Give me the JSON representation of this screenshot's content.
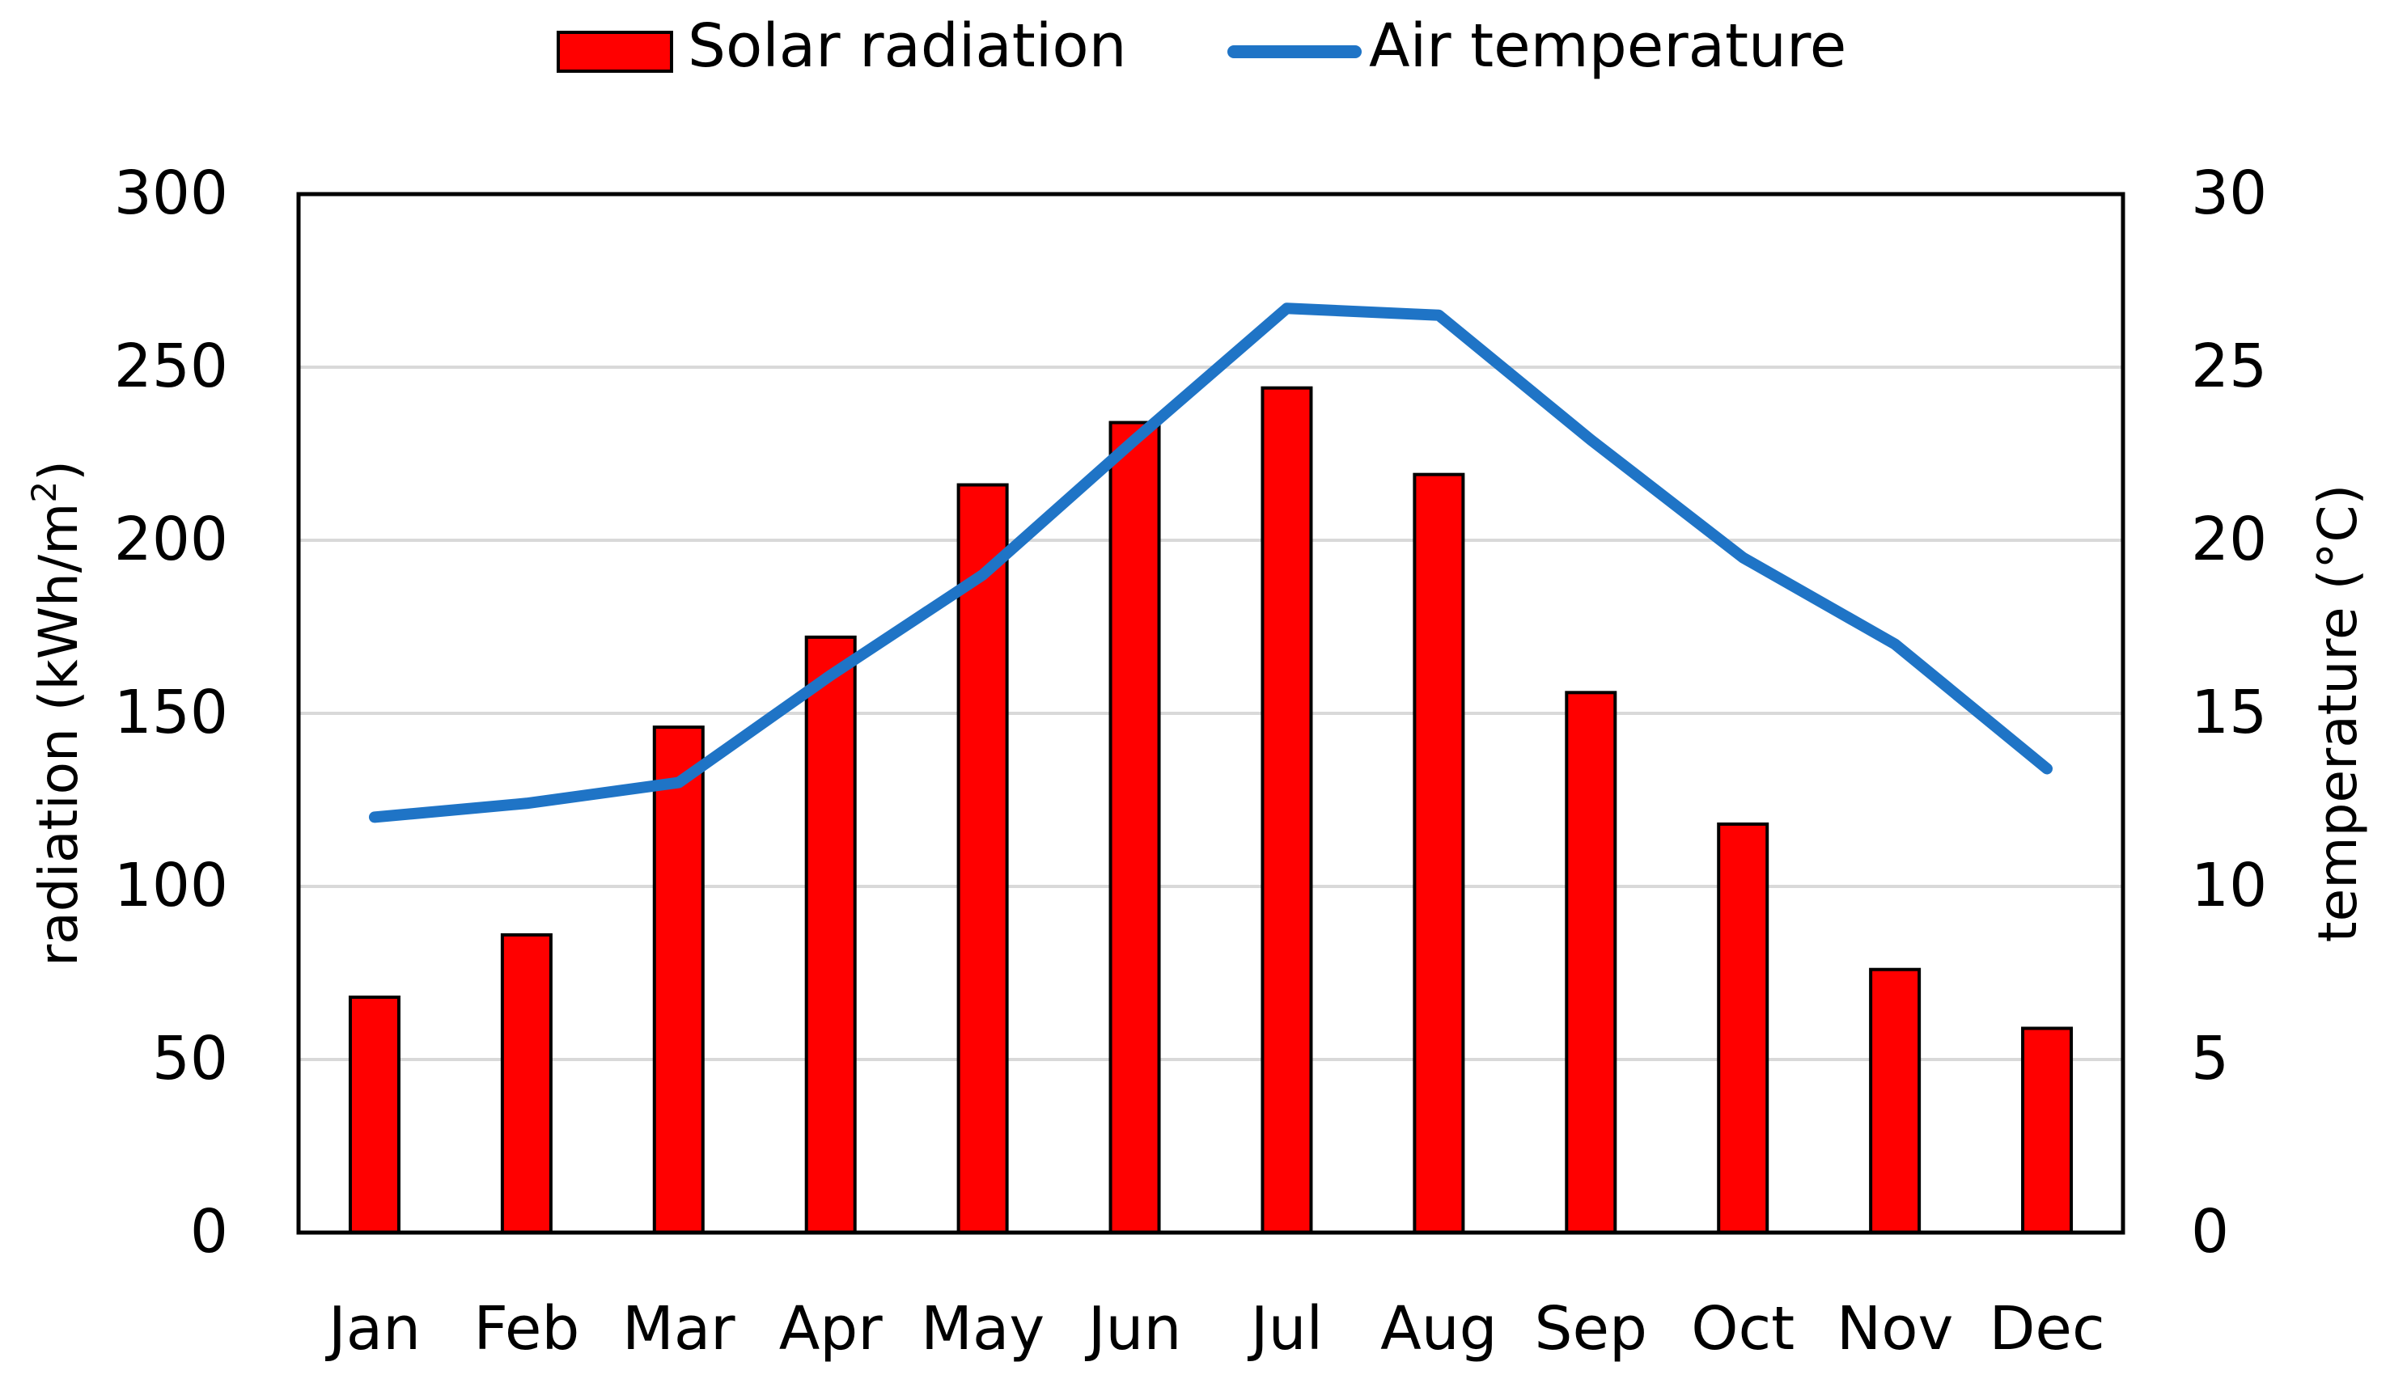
{
  "chart_data": {
    "type": "bar+line",
    "categories": [
      "Jan",
      "Feb",
      "Mar",
      "Apr",
      "May",
      "Jun",
      "Jul",
      "Aug",
      "Sep",
      "Oct",
      "Nov",
      "Dec"
    ],
    "series": [
      {
        "name": "Solar radiation",
        "type": "bar",
        "axis": "left",
        "color": "#ff0000",
        "values": [
          68,
          86,
          146,
          172,
          216,
          234,
          244,
          219,
          156,
          118,
          76,
          59
        ]
      },
      {
        "name": "Air temperature",
        "type": "line",
        "axis": "right",
        "color": "#1f74c6",
        "values": [
          12.0,
          12.4,
          13.0,
          16.1,
          19.0,
          22.9,
          26.7,
          26.5,
          22.9,
          19.5,
          17.0,
          13.4
        ]
      }
    ],
    "y_left": {
      "label": "radiation (kWh/m²)",
      "label_main": "radiation (kWh/m",
      "label_sup": "2",
      "label_end": ")",
      "range": [
        0,
        300
      ],
      "ticks": [
        "0",
        "50",
        "100",
        "150",
        "200",
        "250",
        "300"
      ]
    },
    "y_right": {
      "label": "temperature (°C)",
      "range": [
        0,
        30
      ],
      "ticks": [
        "0",
        "5",
        "10",
        "15",
        "20",
        "25",
        "30"
      ]
    },
    "legend": {
      "position": "top-center",
      "items": [
        "Solar radiation",
        "Air temperature"
      ]
    },
    "gridlines": true
  }
}
